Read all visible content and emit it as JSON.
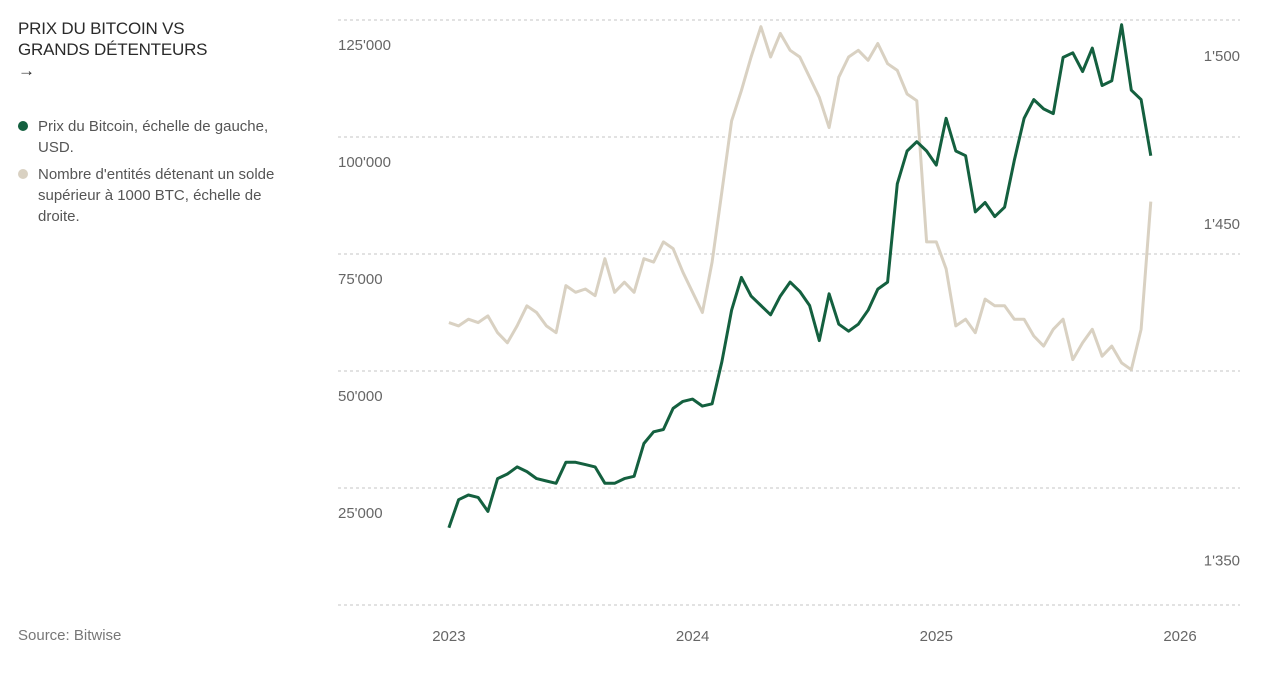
{
  "chart_data": {
    "type": "line",
    "title": "PRIX DU BITCOIN VS GRANDS DÉTENTEURS →",
    "source": "Source: Bitwise",
    "x": [
      2023,
      2023.04,
      2023.08,
      2023.12,
      2023.16,
      2023.2,
      2023.24,
      2023.28,
      2023.32,
      2023.36,
      2023.4,
      2023.44,
      2023.48,
      2023.52,
      2023.56,
      2023.6,
      2023.64,
      2023.68,
      2023.72,
      2023.76,
      2023.8,
      2023.84,
      2023.88,
      2023.92,
      2023.96,
      2024,
      2024.04,
      2024.08,
      2024.12,
      2024.16,
      2024.2,
      2024.24,
      2024.28,
      2024.32,
      2024.36,
      2024.4,
      2024.44,
      2024.48,
      2024.52,
      2024.56,
      2024.6,
      2024.64,
      2024.68,
      2024.72,
      2024.76,
      2024.8,
      2024.84,
      2024.88,
      2024.92,
      2024.96,
      2025,
      2025.04,
      2025.08,
      2025.12,
      2025.16,
      2025.2,
      2025.24,
      2025.28,
      2025.32,
      2025.36,
      2025.4,
      2025.44,
      2025.48,
      2025.52,
      2025.56,
      2025.6,
      2025.64,
      2025.68,
      2025.72,
      2025.76,
      2025.8,
      2025.84,
      2025.88
    ],
    "series": [
      {
        "name": "Prix du Bitcoin, échelle de gauche, USD.",
        "color": "#14603f",
        "axis": "y",
        "values": [
          16500,
          22500,
          23500,
          23000,
          20000,
          27000,
          28000,
          29500,
          28500,
          27000,
          26500,
          26000,
          30500,
          30500,
          30000,
          29500,
          26000,
          26000,
          27000,
          27500,
          34500,
          37000,
          37500,
          42000,
          43500,
          44000,
          42500,
          43000,
          52000,
          63000,
          70000,
          66000,
          64000,
          62000,
          66000,
          69000,
          67000,
          64000,
          56500,
          66500,
          60000,
          58500,
          60000,
          63000,
          67500,
          69000,
          90000,
          97000,
          99000,
          97000,
          94000,
          104000,
          97000,
          96000,
          84000,
          86000,
          83000,
          85000,
          95000,
          104000,
          108000,
          106000,
          105000,
          117000,
          118000,
          114000,
          119000,
          111000,
          112000,
          124000,
          110000,
          108000,
          96000
        ]
      },
      {
        "name": "Nombre d'entités détenant un solde supérieur à 1000 BTC, échelle de droite.",
        "color": "#d9d1c2",
        "axis": "y2",
        "values": [
          1421,
          1420,
          1422,
          1421,
          1423,
          1418,
          1415,
          1420,
          1426,
          1424,
          1420,
          1418,
          1432,
          1430,
          1431,
          1429,
          1440,
          1430,
          1433,
          1430,
          1440,
          1439,
          1445,
          1443,
          1436,
          1430,
          1424,
          1439,
          1460,
          1481,
          1490,
          1500,
          1509,
          1500,
          1507,
          1502,
          1500,
          1494,
          1488,
          1479,
          1494,
          1500,
          1502,
          1499,
          1504,
          1498,
          1496,
          1489,
          1487,
          1445,
          1445,
          1437,
          1420,
          1422,
          1418,
          1428,
          1426,
          1426,
          1422,
          1422,
          1417,
          1414,
          1419,
          1422,
          1410,
          1415,
          1419,
          1411,
          1414,
          1409,
          1407,
          1419,
          1457
        ]
      }
    ],
    "xlim": [
      2022.545,
      2026.246
    ],
    "xticks": [
      2023,
      2024,
      2025,
      2026
    ],
    "ylim": [
      0,
      125000
    ],
    "yticks": [
      {
        "value": 25000,
        "label": "25'000"
      },
      {
        "value": 50000,
        "label": "50'000"
      },
      {
        "value": 75000,
        "label": "75'000"
      },
      {
        "value": 100000,
        "label": "100'000"
      },
      {
        "value": 125000,
        "label": "125'000"
      }
    ],
    "y2lim": [
      1337,
      1511
    ],
    "y2ticks": [
      {
        "value": 1350,
        "label": "1'350"
      },
      {
        "value": 1450,
        "label": "1'450"
      },
      {
        "value": 1500,
        "label": "1'500"
      }
    ],
    "grid": true
  }
}
